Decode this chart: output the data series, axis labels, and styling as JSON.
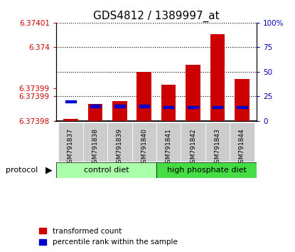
{
  "title": "GDS4812 / 1389997_at",
  "samples": [
    "GSM791837",
    "GSM791838",
    "GSM791839",
    "GSM791840",
    "GSM791841",
    "GSM791842",
    "GSM791843",
    "GSM791844"
  ],
  "group_labels": [
    "control diet",
    "high phosphate diet"
  ],
  "group_colors": [
    "#aaffaa",
    "#44dd44"
  ],
  "ymin": 6.37398,
  "ymax": 6.37401,
  "left_ytick_pcts": [
    0,
    25,
    33.33,
    75,
    100
  ],
  "left_ytick_labels": [
    "6.37398",
    "6.37399",
    "6.37399",
    "6.374",
    "6.37401"
  ],
  "right_ytick_pcts": [
    0,
    25,
    50,
    75,
    100
  ],
  "right_ytick_labels": [
    "0",
    "25",
    "50",
    "75",
    "100%"
  ],
  "red_tops_pct": [
    2,
    17,
    20,
    50,
    37,
    57,
    88,
    43
  ],
  "blue_pcts": [
    20,
    15,
    15,
    15,
    14,
    14,
    14,
    14
  ],
  "bar_color": "#CC0000",
  "blue_color": "#0000CC",
  "legend_items": [
    "transformed count",
    "percentile rank within the sample"
  ],
  "left_axis_color": "#CC0000",
  "right_axis_color": "#0000BB",
  "title_fontsize": 11,
  "tick_fontsize": 7.5,
  "sample_fontsize": 6.5
}
